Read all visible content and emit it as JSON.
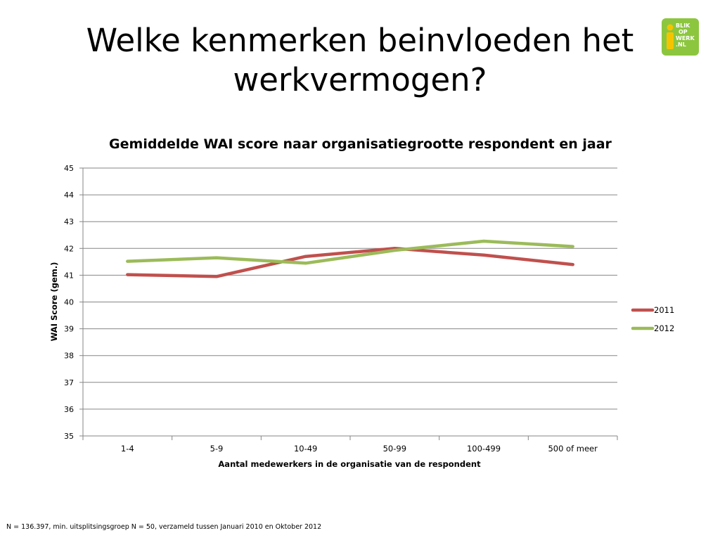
{
  "slide": {
    "title_line1": "Welke kenmerken beinvloeden het",
    "title_line2": "werkvermogen?",
    "footnote": "N = 136.397, min. uitsplitsingsgroep N = 50, verzameld tussen Januari 2010 en Oktober 2012"
  },
  "logo": {
    "line1": "BLIK",
    "line2": "OP",
    "line3": "WERK",
    "line4": ".NL",
    "color": "#8cc63f",
    "figure_color": "#f5c400"
  },
  "chart_data": {
    "type": "line",
    "title": "Gemiddelde WAI score naar organisatiegrootte respondent en jaar",
    "xlabel": "Aantal medewerkers in de organisatie van de respondent",
    "ylabel": "WAI Score (gem.)",
    "categories": [
      "1-4",
      "5-9",
      "10-49",
      "50-99",
      "100-499",
      "500 of meer"
    ],
    "ylim": [
      35,
      45
    ],
    "yticks": [
      35,
      36,
      37,
      38,
      39,
      40,
      41,
      42,
      43,
      44,
      45
    ],
    "grid": true,
    "legend": "right",
    "series": [
      {
        "name": "2011",
        "color": "#c0504d",
        "values": [
          41.02,
          40.95,
          41.7,
          42.0,
          41.75,
          41.4
        ]
      },
      {
        "name": "2012",
        "color": "#9bbb59",
        "values": [
          41.52,
          41.65,
          41.45,
          41.93,
          42.27,
          42.07
        ]
      }
    ]
  }
}
